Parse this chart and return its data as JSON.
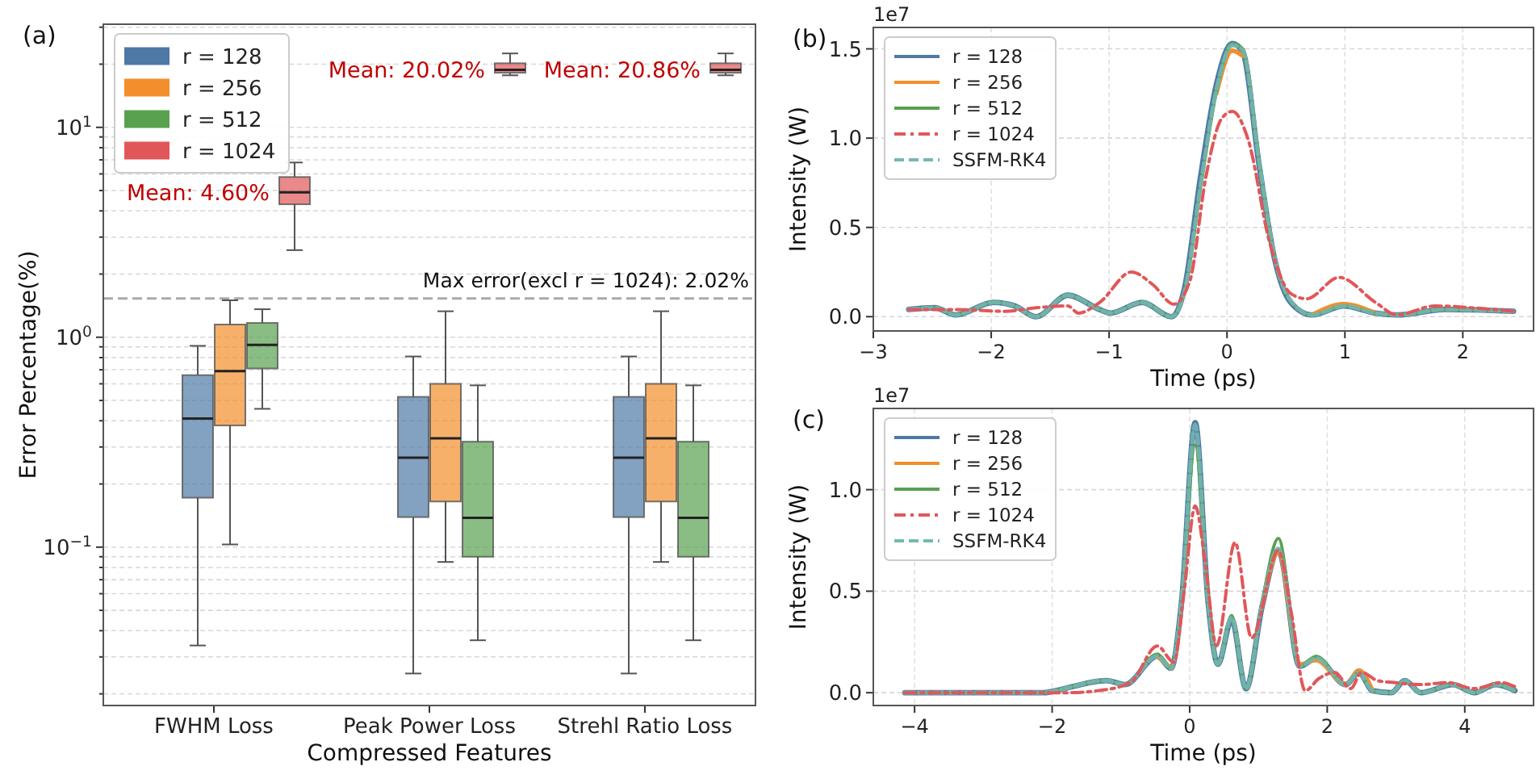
{
  "chart_data": [
    {
      "type": "box",
      "title": "(a)",
      "xlabel": "Compressed Features",
      "ylabel": "Error Percentage(%)",
      "categories": [
        "FWHM Loss",
        "Peak Power Loss",
        "Strehl Ratio Loss"
      ],
      "log": "y",
      "ylim": [
        0.0176,
        31
      ],
      "yticks": [
        {
          "value": 0.02,
          "label": null
        },
        {
          "value": 0.03,
          "label": null
        },
        {
          "value": 0.04,
          "label": null
        },
        {
          "value": 0.05,
          "label": null
        },
        {
          "value": 0.06,
          "label": null
        },
        {
          "value": 0.07,
          "label": null
        },
        {
          "value": 0.08,
          "label": null
        },
        {
          "value": 0.09,
          "label": null
        },
        {
          "value": 0.1,
          "label": "10$^{−1}$"
        },
        {
          "value": 0.2,
          "label": null
        },
        {
          "value": 0.3,
          "label": null
        },
        {
          "value": 0.4,
          "label": null
        },
        {
          "value": 0.5,
          "label": null
        },
        {
          "value": 0.6,
          "label": null
        },
        {
          "value": 0.7,
          "label": null
        },
        {
          "value": 0.8,
          "label": null
        },
        {
          "value": 0.9,
          "label": null
        },
        {
          "value": 1,
          "label": "10$^{0}$"
        },
        {
          "value": 2,
          "label": null
        },
        {
          "value": 3,
          "label": null
        },
        {
          "value": 4,
          "label": null
        },
        {
          "value": 5,
          "label": null
        },
        {
          "value": 6,
          "label": null
        },
        {
          "value": 7,
          "label": null
        },
        {
          "value": 8,
          "label": null
        },
        {
          "value": 9,
          "label": null
        },
        {
          "value": 10,
          "label": "10$^{1}$"
        },
        {
          "value": 20,
          "label": null
        },
        {
          "value": 30,
          "label": null
        }
      ],
      "grid": "y",
      "legend": "top left",
      "series": [
        {
          "name": "r = 128",
          "color": "#4e79a7",
          "boxes": [
            {
              "low": 0.034,
              "q1": 0.172,
              "median": 0.41,
              "q3": 0.66,
              "high": 0.91
            },
            {
              "low": 0.025,
              "q1": 0.139,
              "median": 0.267,
              "q3": 0.52,
              "high": 0.81
            },
            {
              "low": 0.025,
              "q1": 0.139,
              "median": 0.267,
              "q3": 0.52,
              "high": 0.81
            }
          ]
        },
        {
          "name": "r = 256",
          "color": "#f28e2b",
          "boxes": [
            {
              "low": 0.103,
              "q1": 0.38,
              "median": 0.69,
              "q3": 1.15,
              "high": 1.5
            },
            {
              "low": 0.085,
              "q1": 0.165,
              "median": 0.33,
              "q3": 0.6,
              "high": 1.33
            },
            {
              "low": 0.085,
              "q1": 0.165,
              "median": 0.33,
              "q3": 0.6,
              "high": 1.33
            }
          ]
        },
        {
          "name": "r = 512",
          "color": "#59a14f",
          "boxes": [
            {
              "low": 0.456,
              "q1": 0.71,
              "median": 0.92,
              "q3": 1.17,
              "high": 1.36
            },
            {
              "low": 0.036,
              "q1": 0.09,
              "median": 0.138,
              "q3": 0.318,
              "high": 0.59
            },
            {
              "low": 0.036,
              "q1": 0.09,
              "median": 0.138,
              "q3": 0.318,
              "high": 0.59
            }
          ]
        },
        {
          "name": "r = 1024",
          "color": "#e15759",
          "boxes": [
            {
              "low": 2.6,
              "q1": 4.3,
              "median": 4.9,
              "q3": 5.8,
              "high": 6.8
            },
            {
              "low": 17.7,
              "q1": 18.2,
              "median": 18.8,
              "q3": 20.2,
              "high": 22.5
            },
            {
              "low": 17.7,
              "q1": 18.2,
              "median": 18.8,
              "q3": 20.2,
              "high": 22.5
            }
          ]
        }
      ],
      "ref_lines": [
        {
          "axis": "y",
          "value": 1.53,
          "color": "#aaaaaa",
          "line_style": "dashed"
        }
      ],
      "annotations": [
        "Mean: 4.60%",
        "Mean: 20.02%",
        "Mean: 20.86%",
        "Max error(excl r = 1024): 2.02%"
      ]
    },
    {
      "type": "line",
      "title": "(b)",
      "xlabel": "Time (ps)",
      "ylabel": "Intensity (W)",
      "xlim": [
        -3,
        2.6
      ],
      "xticks": [
        {
          "value": -3,
          "label": "−3"
        },
        {
          "value": -2,
          "label": "−2"
        },
        {
          "value": -1,
          "label": "−1"
        },
        0,
        1,
        2
      ],
      "ylim": [
        -0.08,
        1.62
      ],
      "yticks": [
        {
          "value": 0,
          "label": "0.0"
        },
        {
          "value": 0.5,
          "label": "0.5"
        },
        {
          "value": 1,
          "label": "1.0"
        },
        {
          "value": 1.5,
          "label": "1.5"
        }
      ],
      "grid": true,
      "legend": "top left",
      "annotations": [
        "1e7"
      ],
      "x": [
        -2.7,
        -2.48,
        -2.3,
        -1.98,
        -1.8,
        -1.62,
        -1.35,
        -1.08,
        -0.99,
        -0.72,
        -0.47,
        -0.36,
        -0.225,
        -0.09,
        0.045,
        0.135,
        0.27,
        0.405,
        0.54,
        0.72,
        0.99,
        1.26,
        1.44,
        1.85,
        2.43
      ],
      "series": [
        {
          "name": "r = 128",
          "color": "#4e79a7",
          "line_style": "solid",
          "values": [
            0.04,
            0.05,
            0.01,
            0.08,
            0.06,
            0.0,
            0.12,
            0.04,
            0.02,
            0.08,
            0.0,
            0.16,
            0.78,
            1.3,
            1.53,
            1.48,
            0.86,
            0.32,
            0.08,
            0.01,
            0.06,
            0.02,
            0.01,
            0.04,
            0.03
          ]
        },
        {
          "name": "r = 256",
          "color": "#f28e2b",
          "line_style": "solid",
          "values": [
            null,
            null,
            null,
            null,
            null,
            null,
            null,
            null,
            null,
            null,
            null,
            null,
            null,
            1.25,
            1.49,
            1.46,
            null,
            null,
            null,
            0.01,
            0.07,
            0.02,
            null,
            null,
            null
          ]
        },
        {
          "name": "r = 512",
          "color": "#59a14f",
          "line_style": "solid",
          "values": [
            0.04,
            0.05,
            0.01,
            0.08,
            0.06,
            0.0,
            0.12,
            0.04,
            0.02,
            0.08,
            0.0,
            0.14,
            0.72,
            1.26,
            1.53,
            1.5,
            0.88,
            0.33,
            0.09,
            0.01,
            0.06,
            0.02,
            0.01,
            0.04,
            0.03
          ]
        },
        {
          "name": "r = 1024",
          "color": "#e15759",
          "line_style": "dashdot",
          "x": [
            -2.7,
            -2.3,
            -1.89,
            -1.62,
            -1.35,
            -1.26,
            -1.08,
            -0.81,
            -0.63,
            -0.45,
            -0.315,
            -0.18,
            -0.045,
            0.045,
            0.18,
            0.36,
            0.54,
            0.675,
            0.95,
            1.26,
            1.44,
            1.76,
            2.07,
            2.43
          ],
          "values": [
            0.04,
            0.04,
            0.03,
            0.05,
            0.06,
            0.02,
            0.08,
            0.25,
            0.18,
            0.07,
            0.2,
            0.78,
            1.11,
            1.15,
            0.99,
            0.42,
            0.13,
            0.1,
            0.22,
            0.08,
            0.01,
            0.06,
            0.05,
            0.03
          ]
        },
        {
          "name": "SSFM-RK4",
          "color": "#76b7b2",
          "line_style": "dashed",
          "values": [
            0.04,
            0.05,
            0.01,
            0.08,
            0.06,
            0.0,
            0.12,
            0.04,
            0.02,
            0.08,
            0.0,
            0.14,
            0.73,
            1.27,
            1.52,
            1.49,
            0.88,
            0.33,
            0.09,
            0.01,
            0.06,
            0.02,
            0.01,
            0.04,
            0.03
          ]
        }
      ]
    },
    {
      "type": "line",
      "title": "(c)",
      "xlabel": "Time (ps)",
      "ylabel": "Intensity (W)",
      "xlim": [
        -4.6,
        5.0
      ],
      "xticks": [
        {
          "value": -4,
          "label": "−4"
        },
        {
          "value": -2,
          "label": "−2"
        },
        0,
        2,
        4
      ],
      "ylim": [
        -0.063,
        1.4
      ],
      "yticks": [
        {
          "value": 0,
          "label": "0.0"
        },
        {
          "value": 0.5,
          "label": "0.5"
        },
        {
          "value": 1,
          "label": "1.0"
        }
      ],
      "grid": true,
      "legend": "top left",
      "annotations": [
        "1e7"
      ],
      "x": [
        -4.14,
        -2.11,
        -1.95,
        -1.21,
        -0.94,
        -0.47,
        -0.27,
        -0.12,
        0.08,
        0.27,
        0.41,
        0.61,
        0.82,
        1.05,
        1.29,
        1.6,
        1.84,
        2.27,
        2.46,
        2.66,
        2.93,
        3.13,
        3.36,
        3.83,
        4.14,
        4.45,
        4.73
      ],
      "series": [
        {
          "name": "r = 128",
          "color": "#4e79a7",
          "line_style": "solid",
          "values": [
            0,
            0,
            0.01,
            0.06,
            0.04,
            0.18,
            0.12,
            0.44,
            1.33,
            0.44,
            0.14,
            0.36,
            0.02,
            0.42,
            0.7,
            0.13,
            0.17,
            0.04,
            0.1,
            0.01,
            0,
            0.06,
            0,
            0.04,
            0,
            0.04,
            0.01
          ]
        },
        {
          "name": "r = 256",
          "color": "#f28e2b",
          "line_style": "solid",
          "values": [
            null,
            null,
            null,
            null,
            null,
            0.18,
            0.12,
            null,
            null,
            null,
            null,
            null,
            null,
            0.42,
            0.69,
            0.14,
            0.16,
            0.04,
            0.11,
            0.01,
            null,
            null,
            null,
            null,
            null,
            null,
            null
          ]
        },
        {
          "name": "r = 512",
          "color": "#59a14f",
          "line_style": "solid",
          "values": [
            0,
            0,
            0.01,
            0.06,
            0.04,
            0.19,
            0.12,
            0.44,
            1.22,
            0.44,
            0.14,
            0.38,
            0.02,
            0.44,
            0.76,
            0.13,
            0.18,
            0.04,
            0.1,
            0.01,
            0,
            0.06,
            0,
            0.04,
            0,
            0.04,
            0.01
          ]
        },
        {
          "name": "r = 1024",
          "color": "#e15759",
          "line_style": "dashdot",
          "x": [
            -4.14,
            -1.8,
            -1.33,
            -0.86,
            -0.47,
            -0.23,
            -0.08,
            0.08,
            0.23,
            0.39,
            0.66,
            0.9,
            1.29,
            1.48,
            1.68,
            1.88,
            2.11,
            2.34,
            2.5,
            2.73,
            2.97,
            3.36,
            3.75,
            4.14,
            4.53,
            4.73
          ],
          "values": [
            0,
            0,
            0.01,
            0.05,
            0.23,
            0.15,
            0.5,
            0.92,
            0.63,
            0.23,
            0.74,
            0.27,
            0.7,
            0.39,
            0.01,
            0.07,
            0.1,
            0.02,
            0.1,
            0.06,
            0.05,
            0.04,
            0.05,
            0.02,
            0.05,
            0.03
          ]
        },
        {
          "name": "SSFM-RK4",
          "color": "#76b7b2",
          "line_style": "dashed",
          "values": [
            0,
            0,
            0.01,
            0.06,
            0.04,
            0.18,
            0.12,
            0.44,
            1.32,
            0.44,
            0.14,
            0.37,
            0.02,
            0.43,
            0.71,
            0.13,
            0.17,
            0.04,
            0.1,
            0.01,
            0,
            0.06,
            0,
            0.04,
            0,
            0.04,
            0.01
          ]
        }
      ]
    }
  ]
}
